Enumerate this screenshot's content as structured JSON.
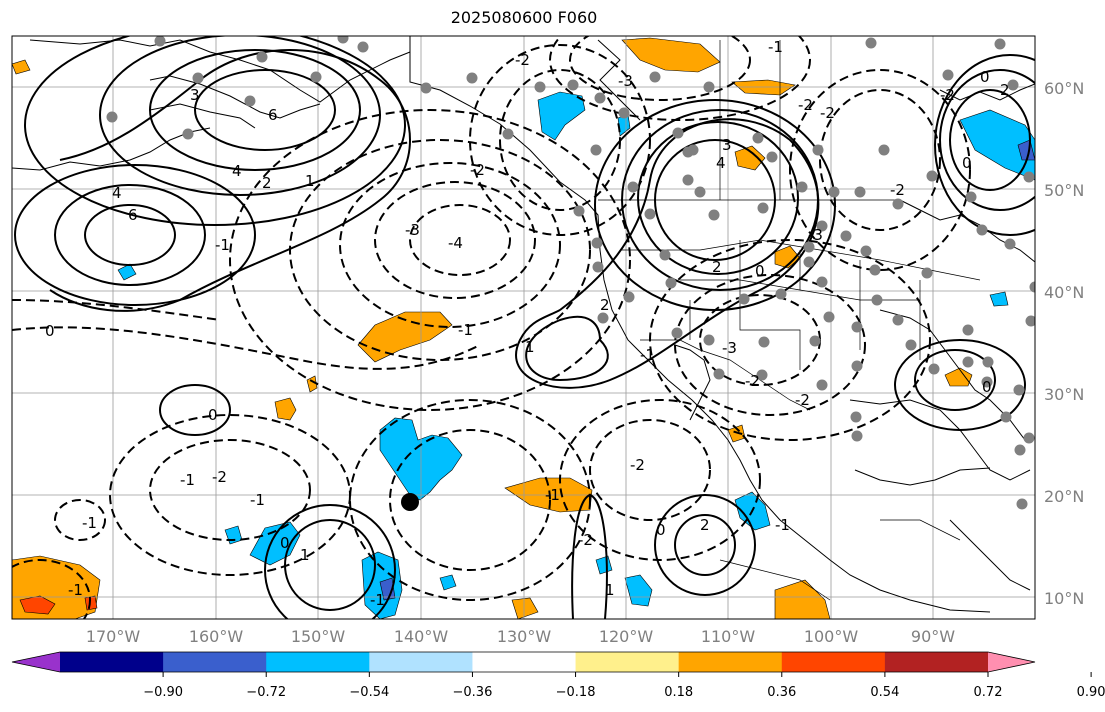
{
  "title": "2025080600 F060",
  "map": {
    "lon_ticks": [
      "170°W",
      "160°W",
      "150°W",
      "140°W",
      "130°W",
      "120°W",
      "110°W",
      "100°W",
      "90°W"
    ],
    "lat_ticks": [
      "60°N",
      "50°N",
      "40°N",
      "30°N",
      "20°N",
      "10°N"
    ]
  },
  "colorbar": {
    "colors": [
      "#9932cc",
      "#00008b",
      "#3a5fcd",
      "#00bfff",
      "#b0e2ff",
      "#ffffff",
      "#fff08c",
      "#ffa500",
      "#ff4500",
      "#b22222",
      "#ff8fb0"
    ],
    "labels": [
      "−0.90",
      "−0.72",
      "−0.54",
      "−0.36",
      "−0.18",
      "0.18",
      "0.36",
      "0.54",
      "0.72",
      "0.90"
    ]
  },
  "contour_labels": [
    "3",
    "6",
    "4",
    "2",
    "1",
    "4",
    "6",
    "-1",
    "0",
    "-1",
    "-3",
    "-4",
    "-2",
    "-2",
    "-2",
    "-3",
    "2",
    "1",
    "-2",
    "-3",
    "-1",
    "-1",
    "0",
    "-1",
    "-2",
    "-1",
    "-2",
    "0",
    "1",
    "-1",
    "0",
    "2",
    "3",
    "4",
    "-2",
    "-3",
    "-2",
    "0",
    "2",
    "-2",
    "-1",
    "0",
    "-2",
    "-2",
    "-1",
    "0",
    "0",
    "-1",
    "2",
    "1",
    "-1"
  ]
}
